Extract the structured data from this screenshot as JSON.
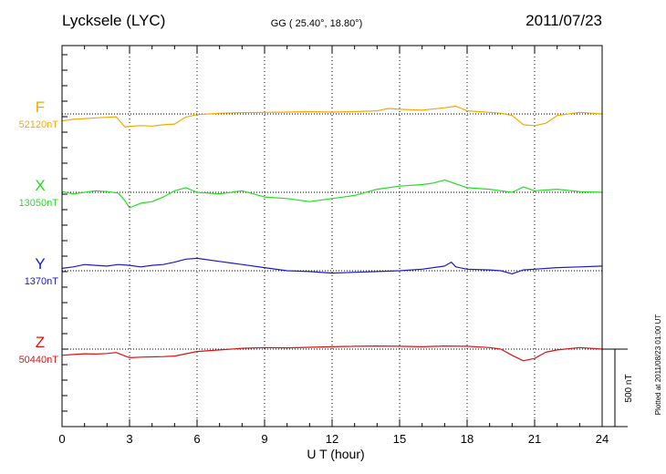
{
  "header": {
    "station": "Lycksele (LYC)",
    "coords": "GG ( 25.40°,  18.80°)",
    "date": "2011/07/23"
  },
  "footer": {
    "plotted": "Plotted at 2011/08/23 01:00 UT",
    "scale_label": "500 nT"
  },
  "chart_data": {
    "type": "line",
    "title": "Lycksele (LYC)",
    "xlabel": "U T (hour)",
    "ylabel": "",
    "xlim": [
      0,
      24
    ],
    "xticks": [
      "0",
      "3",
      "6",
      "9",
      "12",
      "15",
      "18",
      "21",
      "24"
    ],
    "grid": true,
    "scale_bar_nT": 500,
    "series": [
      {
        "name": "F",
        "baseline_label": "52120nT",
        "color": "#f5a800",
        "x": [
          0,
          0.5,
          1,
          1.5,
          2,
          2.4,
          2.8,
          3,
          3.5,
          4,
          4.5,
          5,
          5.5,
          6,
          7,
          8,
          9,
          10,
          11,
          12,
          13,
          14,
          14.5,
          15,
          16,
          17,
          17.5,
          18,
          19,
          19.5,
          20,
          20.5,
          21,
          21.5,
          22,
          23,
          24
        ],
        "y": [
          -45,
          -35,
          -30,
          -25,
          -22,
          -18,
          -85,
          -80,
          -75,
          -78,
          -70,
          -65,
          -20,
          -5,
          5,
          8,
          10,
          12,
          15,
          12,
          15,
          20,
          35,
          30,
          25,
          40,
          50,
          20,
          10,
          5,
          -10,
          -70,
          -75,
          -60,
          -10,
          10,
          0
        ]
      },
      {
        "name": "X",
        "baseline_label": "13050nT",
        "color": "#22dd22",
        "x": [
          0,
          0.5,
          1,
          1.5,
          2,
          2.5,
          2.8,
          3,
          3.5,
          4,
          4.5,
          5,
          5.5,
          6,
          7,
          8,
          9,
          10,
          11,
          12,
          13,
          14,
          15,
          16,
          16.5,
          17,
          17.5,
          18,
          19,
          19.5,
          20,
          20.5,
          21,
          22,
          23,
          24
        ],
        "y": [
          5,
          -10,
          0,
          10,
          5,
          -5,
          -55,
          -100,
          -70,
          -60,
          -30,
          10,
          30,
          0,
          -10,
          10,
          -30,
          -40,
          -60,
          -40,
          -20,
          20,
          40,
          50,
          60,
          80,
          55,
          30,
          20,
          10,
          0,
          35,
          10,
          20,
          5,
          0
        ]
      },
      {
        "name": "Y",
        "baseline_label": "1370nT",
        "color": "#1a1acc",
        "x": [
          0,
          0.5,
          1,
          1.5,
          2,
          2.5,
          3,
          3.5,
          4,
          4.5,
          5,
          5.5,
          6,
          7,
          8,
          9,
          10,
          11,
          12,
          13,
          14,
          15,
          16,
          17,
          17.3,
          17.5,
          18,
          19,
          19.5,
          20,
          20.5,
          21,
          22,
          23,
          24
        ],
        "y": [
          15,
          25,
          40,
          35,
          30,
          40,
          35,
          25,
          35,
          40,
          55,
          75,
          80,
          60,
          40,
          20,
          0,
          -5,
          -15,
          -10,
          -5,
          0,
          10,
          30,
          55,
          25,
          10,
          5,
          0,
          -20,
          5,
          10,
          20,
          25,
          30
        ]
      },
      {
        "name": "Z",
        "baseline_label": "50440nT",
        "color": "#dd1111",
        "x": [
          0,
          0.5,
          1,
          1.5,
          2,
          2.4,
          2.8,
          3,
          3.5,
          4,
          4.5,
          5,
          5.5,
          6,
          7,
          8,
          9,
          10,
          11,
          12,
          13,
          14,
          15,
          16,
          17,
          18,
          19,
          19.5,
          20,
          20.5,
          21,
          21.5,
          22,
          23,
          24
        ],
        "y": [
          -40,
          -35,
          -30,
          -32,
          -28,
          -22,
          -45,
          -55,
          -52,
          -50,
          -48,
          -45,
          -30,
          -15,
          -5,
          5,
          10,
          8,
          12,
          15,
          18,
          20,
          18,
          15,
          20,
          18,
          10,
          0,
          -40,
          -75,
          -60,
          -20,
          -5,
          10,
          0
        ]
      }
    ]
  }
}
